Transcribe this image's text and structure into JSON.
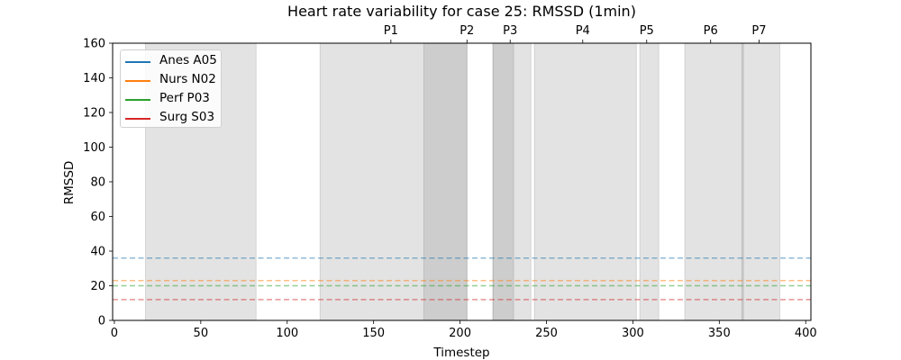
{
  "chart_data": {
    "type": "line",
    "title": "Heart rate variability for case 25: RMSSD (1min)",
    "xlabel": "Timestep",
    "ylabel": "RMSSD",
    "xlim": [
      -1,
      403
    ],
    "ylim": [
      0,
      160
    ],
    "x_ticks": [
      0,
      50,
      100,
      150,
      200,
      250,
      300,
      350,
      400
    ],
    "y_ticks": [
      0,
      20,
      40,
      60,
      80,
      100,
      120,
      140,
      160
    ],
    "grid": false,
    "legend_position": "top-left",
    "series": [
      {
        "name": "Anes A05",
        "color": "#1f77b4",
        "baseline": 36,
        "values": []
      },
      {
        "name": "Nurs N02",
        "color": "#ff7f0e",
        "baseline": 23,
        "values": []
      },
      {
        "name": "Perf P03",
        "color": "#2ca02c",
        "baseline": 20,
        "values": []
      },
      {
        "name": "Surg S03",
        "color": "#d62728",
        "baseline": 12,
        "values": []
      }
    ],
    "shaded_intervals": [
      {
        "start": 18,
        "end": 82
      },
      {
        "start": 119,
        "end": 204
      },
      {
        "start": 179,
        "end": 204
      },
      {
        "start": 219,
        "end": 241
      },
      {
        "start": 219,
        "end": 231
      },
      {
        "start": 243,
        "end": 302
      },
      {
        "start": 304,
        "end": 315
      },
      {
        "start": 330,
        "end": 385
      },
      {
        "start": 363,
        "end": 364
      }
    ],
    "phase_markers": [
      {
        "label": "P1",
        "x": 160
      },
      {
        "label": "P2",
        "x": 204
      },
      {
        "label": "P3",
        "x": 229
      },
      {
        "label": "P4",
        "x": 271
      },
      {
        "label": "P5",
        "x": 308
      },
      {
        "label": "P6",
        "x": 345
      },
      {
        "label": "P7",
        "x": 373
      }
    ]
  }
}
